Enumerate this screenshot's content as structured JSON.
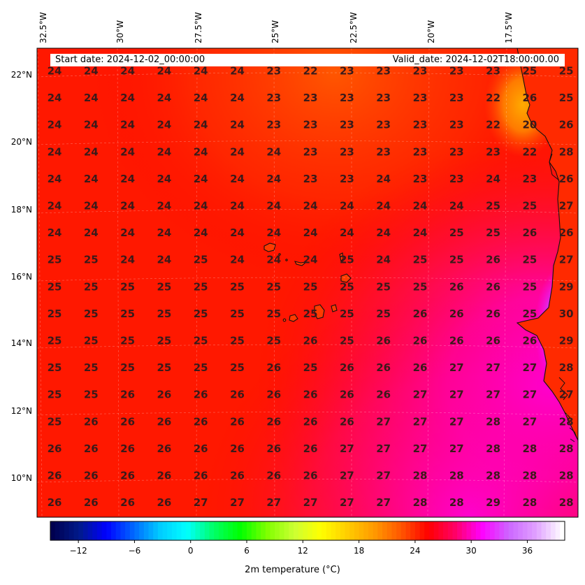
{
  "header": {
    "start_date": "Start date: 2024-12-02_00:00:00",
    "valid_date": "Valid_date: 2024-12-02T18:00:00.00"
  },
  "axes": {
    "lon_labels": [
      "32.5°W",
      "30°W",
      "27.5°W",
      "25°W",
      "22.5°W",
      "20°W",
      "17.5°W"
    ],
    "lat_labels": [
      "22°N",
      "20°N",
      "18°N",
      "16°N",
      "14°N",
      "12°N",
      "10°N"
    ]
  },
  "colorbar": {
    "label": "2m temperature ($^\\circ$C)",
    "display_label": "2m temperature (°C)",
    "ticks": [
      "−12",
      "−6",
      "0",
      "6",
      "12",
      "18",
      "24",
      "30",
      "36"
    ],
    "tick_values": [
      -12,
      -6,
      0,
      6,
      12,
      18,
      24,
      30,
      36
    ],
    "range": [
      -15,
      40
    ],
    "colors": [
      "#000050",
      "#001a8c",
      "#0000ff",
      "#0066ff",
      "#00ccff",
      "#00ffff",
      "#00ff66",
      "#00ff00",
      "#80ff00",
      "#ccff33",
      "#ffff00",
      "#ffcc00",
      "#ff9900",
      "#ff5500",
      "#ff0000",
      "#ff0066",
      "#ff00ff",
      "#cc66ff",
      "#e0a0ff",
      "#ffffff"
    ]
  },
  "grid_values": [
    [
      "24",
      "24",
      "24",
      "24",
      "24",
      "24",
      "23",
      "22",
      "23",
      "23",
      "23",
      "23",
      "23",
      "25",
      "25"
    ],
    [
      "24",
      "24",
      "24",
      "24",
      "24",
      "24",
      "23",
      "23",
      "23",
      "23",
      "23",
      "23",
      "22",
      "26",
      "25"
    ],
    [
      "24",
      "24",
      "24",
      "24",
      "24",
      "24",
      "23",
      "23",
      "23",
      "23",
      "23",
      "23",
      "22",
      "20",
      "26"
    ],
    [
      "24",
      "24",
      "24",
      "24",
      "24",
      "24",
      "24",
      "23",
      "23",
      "23",
      "23",
      "23",
      "23",
      "22",
      "28"
    ],
    [
      "24",
      "24",
      "24",
      "24",
      "24",
      "24",
      "24",
      "23",
      "23",
      "24",
      "23",
      "23",
      "24",
      "23",
      "26"
    ],
    [
      "24",
      "24",
      "24",
      "24",
      "24",
      "24",
      "24",
      "24",
      "24",
      "24",
      "24",
      "24",
      "25",
      "25",
      "27"
    ],
    [
      "24",
      "24",
      "24",
      "24",
      "24",
      "24",
      "24",
      "24",
      "24",
      "24",
      "24",
      "25",
      "25",
      "26",
      "26"
    ],
    [
      "25",
      "25",
      "24",
      "24",
      "25",
      "24",
      "24",
      "24",
      "25",
      "24",
      "25",
      "25",
      "26",
      "25",
      "27"
    ],
    [
      "25",
      "25",
      "25",
      "25",
      "25",
      "25",
      "25",
      "25",
      "25",
      "25",
      "25",
      "26",
      "26",
      "25",
      "29"
    ],
    [
      "25",
      "25",
      "25",
      "25",
      "25",
      "25",
      "25",
      "25",
      "25",
      "25",
      "26",
      "26",
      "26",
      "25",
      "30"
    ],
    [
      "25",
      "25",
      "25",
      "25",
      "25",
      "25",
      "25",
      "26",
      "25",
      "26",
      "26",
      "26",
      "26",
      "26",
      "29"
    ],
    [
      "25",
      "25",
      "25",
      "25",
      "25",
      "25",
      "26",
      "25",
      "26",
      "26",
      "26",
      "27",
      "27",
      "27",
      "28"
    ],
    [
      "25",
      "25",
      "26",
      "26",
      "26",
      "26",
      "26",
      "26",
      "26",
      "26",
      "27",
      "27",
      "27",
      "27",
      "27"
    ],
    [
      "25",
      "26",
      "26",
      "26",
      "26",
      "26",
      "26",
      "26",
      "26",
      "27",
      "27",
      "27",
      "28",
      "27",
      "28"
    ],
    [
      "26",
      "26",
      "26",
      "26",
      "26",
      "26",
      "26",
      "26",
      "27",
      "27",
      "27",
      "27",
      "28",
      "28",
      "28"
    ],
    [
      "26",
      "26",
      "26",
      "26",
      "26",
      "26",
      "26",
      "26",
      "27",
      "27",
      "28",
      "28",
      "28",
      "28",
      "28"
    ],
    [
      "26",
      "26",
      "26",
      "26",
      "27",
      "27",
      "27",
      "27",
      "27",
      "27",
      "28",
      "28",
      "29",
      "28",
      "28"
    ]
  ]
}
